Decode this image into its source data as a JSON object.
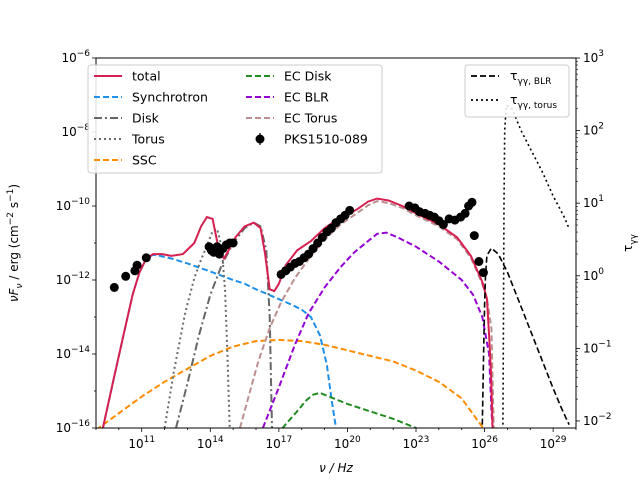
{
  "chart_data": {
    "type": "line",
    "x_axis": {
      "label": "ν / Hz",
      "scale": "log",
      "lim": [
        1000000000.0,
        1e+30
      ],
      "tick_labels": [
        "10^11",
        "10^14",
        "10^17",
        "10^20",
        "10^23",
        "10^26",
        "10^29"
      ]
    },
    "y_axis": {
      "label": "νF_ν / erg (cm^−2 s^−1)",
      "scale": "log",
      "lim": [
        1e-16,
        1e-06
      ],
      "tick_labels": [
        "10^−16",
        "10^−14",
        "10^−12",
        "10^−10",
        "10^−8",
        "10^−6"
      ]
    },
    "y2_axis": {
      "label": "τ_γγ",
      "scale": "log",
      "lim": [
        0.008,
        1000
      ],
      "tick_labels": [
        "10^−2",
        "10^−1",
        "10^0",
        "10^1",
        "10^2",
        "10^3"
      ]
    },
    "grid": false,
    "legend_main": {
      "position": "top-left",
      "entries": [
        {
          "name": "total",
          "color": "#d62050",
          "style": "solid"
        },
        {
          "name": "Synchrotron",
          "color": "#1f8fe8",
          "style": "dashed"
        },
        {
          "name": "Disk",
          "color": "#666666",
          "style": "dashdot"
        },
        {
          "name": "Torus",
          "color": "#6a6a6a",
          "style": "dotted"
        },
        {
          "name": "SSC",
          "color": "#ff8c00",
          "style": "dashed"
        },
        {
          "name": "EC Disk",
          "color": "#228b22",
          "style": "dashed"
        },
        {
          "name": "EC BLR",
          "color": "#9400d3",
          "style": "dashed"
        },
        {
          "name": "EC Torus",
          "color": "#bc8f8f",
          "style": "dashed"
        },
        {
          "name": "PKS1510-089",
          "color": "#000000",
          "style": "errorbar-marker"
        }
      ]
    },
    "legend_tau": {
      "position": "top-right",
      "entries": [
        {
          "name": "τγγ, BLR",
          "color": "#000000",
          "style": "dashed"
        },
        {
          "name": "τγγ, torus",
          "color": "#000000",
          "style": "dotted"
        }
      ]
    },
    "series": [
      {
        "name": "Synchrotron",
        "color": "#1f8fe8",
        "dash": "dashed",
        "points": [
          [
            9.3,
            -16.0
          ],
          [
            9.8,
            -14.6
          ],
          [
            10.2,
            -13.5
          ],
          [
            10.6,
            -12.4
          ],
          [
            10.9,
            -11.8
          ],
          [
            11.2,
            -11.42
          ],
          [
            11.5,
            -11.32
          ],
          [
            11.8,
            -11.35
          ],
          [
            12.3,
            -11.42
          ],
          [
            13.0,
            -11.55
          ],
          [
            14.0,
            -11.77
          ],
          [
            15.0,
            -12.0
          ],
          [
            15.5,
            -12.1
          ],
          [
            16.0,
            -12.25
          ],
          [
            16.5,
            -12.38
          ],
          [
            17.0,
            -12.52
          ],
          [
            17.5,
            -12.65
          ],
          [
            18.0,
            -12.8
          ],
          [
            18.4,
            -13.0
          ],
          [
            18.8,
            -13.5
          ],
          [
            19.1,
            -14.3
          ],
          [
            19.3,
            -15.2
          ],
          [
            19.5,
            -16.0
          ]
        ]
      },
      {
        "name": "SSC",
        "color": "#ff8c00",
        "dash": "dashed",
        "points": [
          [
            9.0,
            -16.05
          ],
          [
            10.0,
            -15.6
          ],
          [
            11.0,
            -15.15
          ],
          [
            12.0,
            -14.75
          ],
          [
            13.0,
            -14.4
          ],
          [
            14.0,
            -14.05
          ],
          [
            15.0,
            -13.8
          ],
          [
            16.0,
            -13.65
          ],
          [
            17.0,
            -13.62
          ],
          [
            18.0,
            -13.65
          ],
          [
            19.0,
            -13.75
          ],
          [
            20.0,
            -13.9
          ],
          [
            21.0,
            -14.05
          ],
          [
            22.0,
            -14.2
          ],
          [
            23.0,
            -14.45
          ],
          [
            24.0,
            -14.75
          ],
          [
            25.0,
            -15.2
          ],
          [
            25.7,
            -15.8
          ],
          [
            26.0,
            -16.05
          ]
        ]
      },
      {
        "name": "Disk",
        "color": "#666666",
        "dash": "dashdot",
        "points": [
          [
            12.5,
            -16.0
          ],
          [
            13.0,
            -14.8
          ],
          [
            13.5,
            -13.5
          ],
          [
            14.0,
            -12.4
          ],
          [
            14.5,
            -11.6
          ],
          [
            15.0,
            -11.0
          ],
          [
            15.5,
            -10.6
          ],
          [
            15.9,
            -10.45
          ],
          [
            16.2,
            -10.55
          ],
          [
            16.45,
            -11.2
          ],
          [
            16.6,
            -13.0
          ],
          [
            16.7,
            -16.0
          ]
        ]
      },
      {
        "name": "Torus",
        "color": "#6a6a6a",
        "dash": "dotted",
        "points": [
          [
            12.0,
            -16.0
          ],
          [
            12.4,
            -14.5
          ],
          [
            12.9,
            -12.9
          ],
          [
            13.3,
            -11.95
          ],
          [
            13.6,
            -11.45
          ],
          [
            13.9,
            -11.0
          ],
          [
            14.1,
            -10.68
          ],
          [
            14.3,
            -10.62
          ],
          [
            14.5,
            -11.1
          ],
          [
            14.65,
            -12.3
          ],
          [
            14.75,
            -14.0
          ],
          [
            14.85,
            -16.0
          ]
        ]
      },
      {
        "name": "EC Disk",
        "color": "#228b22",
        "dash": "dashed",
        "points": [
          [
            16.9,
            -16.2
          ],
          [
            17.3,
            -15.9
          ],
          [
            17.8,
            -15.55
          ],
          [
            18.2,
            -15.25
          ],
          [
            18.5,
            -15.1
          ],
          [
            18.8,
            -15.05
          ],
          [
            19.2,
            -15.15
          ],
          [
            20.0,
            -15.35
          ],
          [
            21.0,
            -15.55
          ],
          [
            22.0,
            -15.75
          ],
          [
            23.0,
            -16.0
          ],
          [
            23.5,
            -16.2
          ]
        ]
      },
      {
        "name": "EC BLR",
        "color": "#9400d3",
        "dash": "dashed",
        "points": [
          [
            16.3,
            -16.0
          ],
          [
            17.0,
            -14.9
          ],
          [
            17.7,
            -13.75
          ],
          [
            18.3,
            -12.9
          ],
          [
            19.0,
            -12.2
          ],
          [
            19.7,
            -11.65
          ],
          [
            20.3,
            -11.25
          ],
          [
            20.9,
            -10.95
          ],
          [
            21.3,
            -10.75
          ],
          [
            21.7,
            -10.72
          ],
          [
            22.2,
            -10.85
          ],
          [
            23.0,
            -11.1
          ],
          [
            24.0,
            -11.5
          ],
          [
            25.0,
            -12.0
          ],
          [
            25.5,
            -12.4
          ],
          [
            25.9,
            -13.0
          ],
          [
            26.2,
            -14.0
          ],
          [
            26.3,
            -15.5
          ],
          [
            26.35,
            -16.0
          ]
        ]
      },
      {
        "name": "EC Torus",
        "color": "#bc8f8f",
        "dash": "dashed",
        "points": [
          [
            15.3,
            -16.0
          ],
          [
            15.7,
            -15.1
          ],
          [
            16.1,
            -14.2
          ],
          [
            16.6,
            -13.3
          ],
          [
            17.1,
            -12.6
          ],
          [
            17.7,
            -11.95
          ],
          [
            18.4,
            -11.35
          ],
          [
            19.1,
            -10.85
          ],
          [
            19.7,
            -10.5
          ],
          [
            20.4,
            -10.2
          ],
          [
            20.9,
            -9.98
          ],
          [
            21.3,
            -9.87
          ],
          [
            21.8,
            -9.92
          ],
          [
            22.4,
            -10.05
          ],
          [
            23.0,
            -10.25
          ],
          [
            24.0,
            -10.55
          ],
          [
            24.8,
            -10.9
          ],
          [
            25.4,
            -11.4
          ],
          [
            25.9,
            -12.1
          ],
          [
            26.1,
            -12.5
          ],
          [
            26.3,
            -13.3
          ],
          [
            26.4,
            -16.0
          ]
        ]
      },
      {
        "name": "total",
        "color": "#d62050",
        "dash": "solid",
        "points": [
          [
            9.3,
            -16.0
          ],
          [
            9.8,
            -14.6
          ],
          [
            10.2,
            -13.5
          ],
          [
            10.6,
            -12.4
          ],
          [
            10.9,
            -11.8
          ],
          [
            11.2,
            -11.42
          ],
          [
            11.5,
            -11.3
          ],
          [
            11.9,
            -11.3
          ],
          [
            12.3,
            -11.35
          ],
          [
            12.8,
            -11.3
          ],
          [
            13.3,
            -11.0
          ],
          [
            13.6,
            -10.55
          ],
          [
            13.85,
            -10.3
          ],
          [
            14.1,
            -10.35
          ],
          [
            14.3,
            -10.95
          ],
          [
            14.45,
            -11.3
          ],
          [
            14.6,
            -11.42
          ],
          [
            14.8,
            -11.2
          ],
          [
            15.1,
            -10.85
          ],
          [
            15.5,
            -10.55
          ],
          [
            15.9,
            -10.45
          ],
          [
            16.2,
            -10.6
          ],
          [
            16.4,
            -11.3
          ],
          [
            16.6,
            -12.25
          ],
          [
            16.8,
            -12.3
          ],
          [
            17.0,
            -12.1
          ],
          [
            17.3,
            -11.6
          ],
          [
            17.8,
            -11.2
          ],
          [
            18.4,
            -10.95
          ],
          [
            19.0,
            -10.6
          ],
          [
            19.6,
            -10.35
          ],
          [
            20.4,
            -10.1
          ],
          [
            20.9,
            -9.88
          ],
          [
            21.3,
            -9.8
          ],
          [
            21.8,
            -9.85
          ],
          [
            22.4,
            -10.0
          ],
          [
            23.0,
            -10.2
          ],
          [
            24.0,
            -10.5
          ],
          [
            24.8,
            -10.85
          ],
          [
            25.4,
            -11.35
          ],
          [
            25.9,
            -12.05
          ],
          [
            26.1,
            -12.5
          ],
          [
            26.2,
            -13.5
          ],
          [
            26.28,
            -14.5
          ],
          [
            26.35,
            -16.0
          ]
        ]
      }
    ],
    "tau_series": [
      {
        "name": "τγγ, BLR",
        "color": "#000000",
        "dash": "dashed",
        "points": [
          [
            25.9,
            -2.05
          ],
          [
            25.96,
            -1.0
          ],
          [
            26.0,
            -0.4
          ],
          [
            26.04,
            0.0
          ],
          [
            26.1,
            0.28
          ],
          [
            26.3,
            0.38
          ],
          [
            26.6,
            0.3
          ],
          [
            27.0,
            0.05
          ],
          [
            27.5,
            -0.35
          ],
          [
            28.0,
            -0.75
          ],
          [
            28.5,
            -1.15
          ],
          [
            29.0,
            -1.55
          ],
          [
            29.4,
            -1.85
          ],
          [
            29.7,
            -2.05
          ]
        ]
      },
      {
        "name": "τγγ, torus",
        "color": "#000000",
        "dash": "dotted",
        "points": [
          [
            26.8,
            -2.05
          ],
          [
            26.83,
            -0.5
          ],
          [
            26.85,
            1.0
          ],
          [
            26.88,
            2.0
          ],
          [
            26.95,
            2.35
          ],
          [
            27.2,
            2.3
          ],
          [
            27.6,
            2.0
          ],
          [
            28.0,
            1.75
          ],
          [
            28.5,
            1.45
          ],
          [
            29.0,
            1.1
          ],
          [
            29.5,
            0.8
          ],
          [
            29.7,
            0.65
          ]
        ]
      }
    ],
    "observed": {
      "name": "PKS1510-089",
      "points": [
        [
          9.8,
          -12.2
        ],
        [
          10.3,
          -11.9
        ],
        [
          10.7,
          -11.75
        ],
        [
          10.8,
          -11.6
        ],
        [
          11.2,
          -11.4
        ],
        [
          13.95,
          -11.1
        ],
        [
          14.05,
          -11.2
        ],
        [
          14.15,
          -11.25
        ],
        [
          14.3,
          -11.1
        ],
        [
          14.4,
          -11.3
        ],
        [
          14.55,
          -11.15
        ],
        [
          14.7,
          -11.05
        ],
        [
          14.85,
          -11.0
        ],
        [
          15.0,
          -11.0
        ],
        [
          17.1,
          -11.85
        ],
        [
          17.3,
          -11.75
        ],
        [
          17.5,
          -11.65
        ],
        [
          17.7,
          -11.55
        ],
        [
          17.9,
          -11.5
        ],
        [
          18.1,
          -11.4
        ],
        [
          18.3,
          -11.3
        ],
        [
          18.5,
          -11.15
        ],
        [
          18.7,
          -11.0
        ],
        [
          18.9,
          -10.85
        ],
        [
          19.1,
          -10.7
        ],
        [
          19.3,
          -10.6
        ],
        [
          19.5,
          -10.45
        ],
        [
          19.7,
          -10.35
        ],
        [
          19.9,
          -10.25
        ],
        [
          20.1,
          -10.12
        ],
        [
          22.7,
          -10.0
        ],
        [
          22.95,
          -10.05
        ],
        [
          23.15,
          -10.15
        ],
        [
          23.4,
          -10.2
        ],
        [
          23.6,
          -10.25
        ],
        [
          23.8,
          -10.3
        ],
        [
          24.0,
          -10.4
        ],
        [
          24.2,
          -10.5
        ],
        [
          24.45,
          -10.35
        ],
        [
          24.7,
          -10.38
        ],
        [
          24.95,
          -10.3
        ],
        [
          25.15,
          -10.2
        ],
        [
          25.3,
          -10.0
        ],
        [
          25.45,
          -9.9
        ],
        [
          25.55,
          -10.8
        ],
        [
          25.75,
          -11.5
        ],
        [
          25.95,
          -11.8
        ]
      ]
    }
  }
}
